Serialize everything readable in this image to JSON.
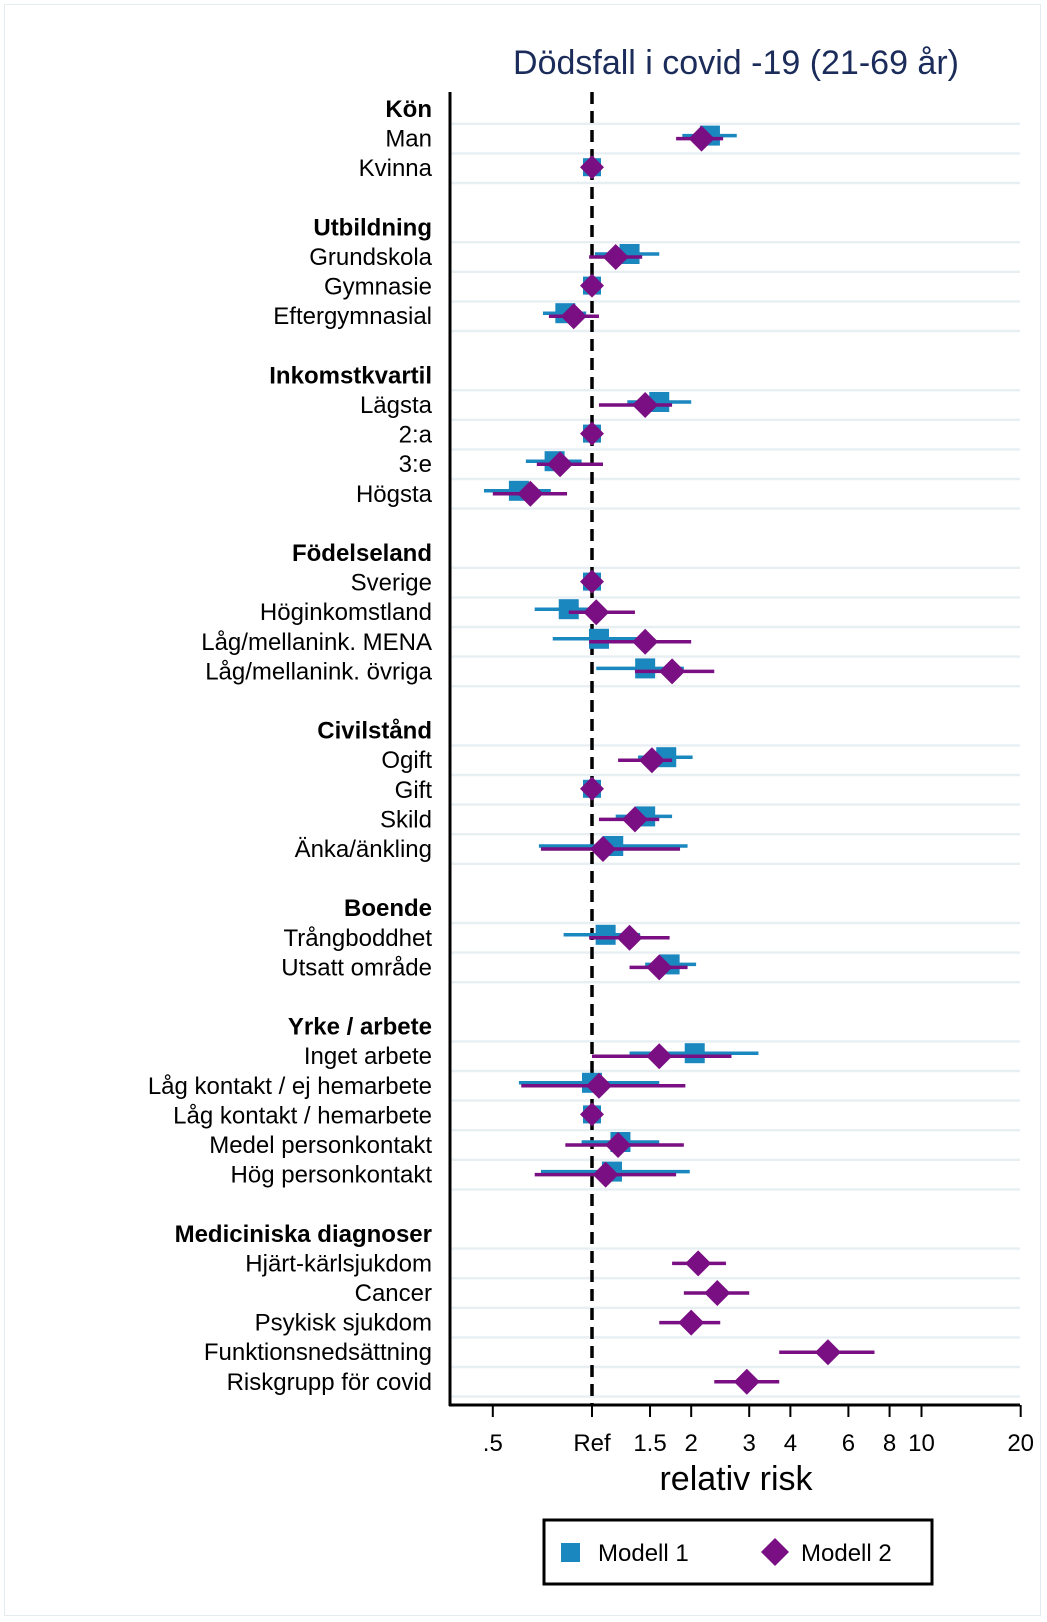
{
  "chart_data": {
    "type": "forest",
    "title": "Dödsfall i covid -19 (21-69 år)",
    "xlabel": "relativ risk",
    "x_scale": "log",
    "xlim": [
      0.4,
      23
    ],
    "reference_value": 1,
    "x_ticks": [
      {
        "value": 0.5,
        "label": ".5"
      },
      {
        "value": 1,
        "label": "Ref"
      },
      {
        "value": 1.5,
        "label": "1.5"
      },
      {
        "value": 2,
        "label": "2"
      },
      {
        "value": 3,
        "label": "3"
      },
      {
        "value": 4,
        "label": "4"
      },
      {
        "value": 6,
        "label": "6"
      },
      {
        "value": 8,
        "label": "8"
      },
      {
        "value": 10,
        "label": "10"
      },
      {
        "value": 20,
        "label": "20"
      }
    ],
    "legend": {
      "placement": "bottom",
      "items": [
        {
          "name": "Modell 1",
          "marker": "square",
          "color": "#1a87bf"
        },
        {
          "name": "Modell 2",
          "marker": "diamond",
          "color": "#7a0f83"
        }
      ]
    },
    "groups": [
      {
        "label": "Kön",
        "rows": [
          {
            "label": "Man",
            "m1": [
              2.28,
              1.88,
              2.75
            ],
            "m2": [
              2.15,
              1.8,
              2.5
            ]
          },
          {
            "label": "Kvinna",
            "ref": true
          }
        ]
      },
      {
        "label": "Utbildning",
        "rows": [
          {
            "label": "Grundskola",
            "m1": [
              1.3,
              1.02,
              1.6
            ],
            "m2": [
              1.18,
              0.98,
              1.42
            ]
          },
          {
            "label": "Gymnasie",
            "ref": true
          },
          {
            "label": "Eftergymnasial",
            "m1": [
              0.83,
              0.71,
              0.96
            ],
            "m2": [
              0.88,
              0.74,
              1.05
            ]
          }
        ]
      },
      {
        "label": "Inkomstkvartil",
        "rows": [
          {
            "label": "Lägsta",
            "m1": [
              1.6,
              1.28,
              2.0
            ],
            "m2": [
              1.45,
              1.05,
              1.75
            ]
          },
          {
            "label": "2:a",
            "ref": true
          },
          {
            "label": "3:e",
            "m1": [
              0.77,
              0.63,
              0.93
            ],
            "m2": [
              0.8,
              0.68,
              1.08
            ]
          },
          {
            "label": "Högsta",
            "m1": [
              0.6,
              0.47,
              0.75
            ],
            "m2": [
              0.65,
              0.5,
              0.84
            ]
          }
        ]
      },
      {
        "label": "Födelseland",
        "rows": [
          {
            "label": "Sverige",
            "ref": true
          },
          {
            "label": "Höginkomstland",
            "m1": [
              0.85,
              0.67,
              1.0
            ],
            "m2": [
              1.03,
              0.85,
              1.35
            ]
          },
          {
            "label": "Låg/mellanink. MENA",
            "m1": [
              1.05,
              0.76,
              1.45
            ],
            "m2": [
              1.45,
              0.98,
              2.0
            ]
          },
          {
            "label": "Låg/mellanink. övriga",
            "m1": [
              1.45,
              1.03,
              1.9
            ],
            "m2": [
              1.75,
              1.35,
              2.35
            ]
          }
        ]
      },
      {
        "label": "Civilstånd",
        "rows": [
          {
            "label": "Ogift",
            "m1": [
              1.68,
              1.38,
              2.02
            ],
            "m2": [
              1.52,
              1.2,
              1.75
            ]
          },
          {
            "label": "Gift",
            "ref": true
          },
          {
            "label": "Skild",
            "m1": [
              1.45,
              1.18,
              1.75
            ],
            "m2": [
              1.35,
              1.05,
              1.6
            ]
          },
          {
            "label": "Änka/änkling",
            "m1": [
              1.16,
              0.69,
              1.95
            ],
            "m2": [
              1.08,
              0.7,
              1.85
            ]
          }
        ]
      },
      {
        "label": "Boende",
        "rows": [
          {
            "label": "Trångboddhet",
            "m1": [
              1.1,
              0.82,
              1.4
            ],
            "m2": [
              1.3,
              0.98,
              1.72
            ]
          },
          {
            "label": "Utsatt område",
            "m1": [
              1.72,
              1.45,
              2.07
            ],
            "m2": [
              1.6,
              1.3,
              1.95
            ]
          }
        ]
      },
      {
        "label": "Yrke / arbete",
        "rows": [
          {
            "label": "Inget arbete",
            "m1": [
              2.05,
              1.3,
              3.2
            ],
            "m2": [
              1.6,
              1.0,
              2.65
            ]
          },
          {
            "label": "Låg kontakt / ej hemarbete",
            "m1": [
              1.0,
              0.6,
              1.6
            ],
            "m2": [
              1.05,
              0.61,
              1.92
            ]
          },
          {
            "label": "Låg kontakt / hemarbete",
            "ref": true
          },
          {
            "label": "Medel personkontakt",
            "m1": [
              1.22,
              0.93,
              1.6
            ],
            "m2": [
              1.2,
              0.83,
              1.9
            ]
          },
          {
            "label": "Hög personkontakt",
            "m1": [
              1.15,
              0.7,
              1.98
            ],
            "m2": [
              1.1,
              0.67,
              1.8
            ]
          }
        ]
      },
      {
        "label": "Mediciniska diagnoser",
        "rows": [
          {
            "label": "Hjärt-kärlsjukdom",
            "m2": [
              2.1,
              1.75,
              2.55
            ]
          },
          {
            "label": "Cancer",
            "m2": [
              2.4,
              1.9,
              3.0
            ]
          },
          {
            "label": "Psykisk sjukdom",
            "m2": [
              2.0,
              1.6,
              2.45
            ]
          },
          {
            "label": "Funktionsnedsättning",
            "m2": [
              5.2,
              3.7,
              7.2
            ]
          },
          {
            "label": "Riskgrupp för covid",
            "m2": [
              2.95,
              2.35,
              3.7
            ]
          }
        ]
      }
    ]
  }
}
